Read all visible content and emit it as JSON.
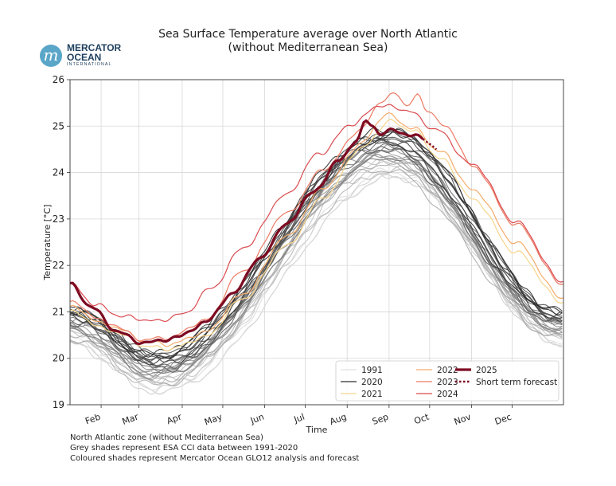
{
  "logo": {
    "line1": "MERCATOR",
    "line2": "OCEAN",
    "line3": "INTERNATIONAL",
    "mark": "m",
    "color": "#5aa6c9"
  },
  "chart_data": {
    "type": "line",
    "title": "Sea Surface Temperature average over North Atlantic",
    "subtitle": "(without Mediterranean Sea)",
    "xlabel": "Time",
    "ylabel": "Temperature [°C]",
    "ylim": [
      19,
      26
    ],
    "xlim": [
      1,
      366
    ],
    "yticks": [
      "19",
      "20",
      "21",
      "22",
      "23",
      "24",
      "25",
      "26"
    ],
    "xticks": [
      {
        "label": "Feb",
        "day": 24
      },
      {
        "label": "Mar",
        "day": 52
      },
      {
        "label": "Apr",
        "day": 84
      },
      {
        "label": "May",
        "day": 114
      },
      {
        "label": "Jun",
        "day": 145
      },
      {
        "label": "Jul",
        "day": 175
      },
      {
        "label": "Aug",
        "day": 206
      },
      {
        "label": "Sep",
        "day": 237
      },
      {
        "label": "Oct",
        "day": 267
      },
      {
        "label": "Nov",
        "day": 298
      },
      {
        "label": "Dec",
        "day": 328
      }
    ],
    "grid": true,
    "grey_series": {
      "name": "ESA CCI 1991-2020",
      "years": 30,
      "jan1_range": [
        20.3,
        21.1
      ],
      "min_range": [
        19.3,
        20.1
      ],
      "min_day": 66,
      "peak_range": [
        23.9,
        24.9
      ],
      "peak_day": 236,
      "dec31_range": [
        20.3,
        21.0
      ],
      "color_range": [
        "#e6e6e6",
        "#2c2c2c"
      ]
    },
    "series": [
      {
        "name": "2021",
        "color": "#f6d58c",
        "width": 1.2,
        "points": [
          [
            1,
            21.0
          ],
          [
            30,
            20.6
          ],
          [
            60,
            20.25
          ],
          [
            75,
            20.2
          ],
          [
            100,
            20.45
          ],
          [
            130,
            21.3
          ],
          [
            160,
            22.4
          ],
          [
            190,
            23.5
          ],
          [
            215,
            24.5
          ],
          [
            238,
            25.1
          ],
          [
            255,
            24.9
          ],
          [
            275,
            24.3
          ],
          [
            300,
            23.4
          ],
          [
            330,
            22.3
          ],
          [
            366,
            21.2
          ]
        ]
      },
      {
        "name": "2022",
        "color": "#f4ab6a",
        "width": 1.2,
        "points": [
          [
            1,
            21.1
          ],
          [
            30,
            20.7
          ],
          [
            60,
            20.35
          ],
          [
            75,
            20.3
          ],
          [
            100,
            20.55
          ],
          [
            130,
            21.4
          ],
          [
            160,
            22.6
          ],
          [
            190,
            23.7
          ],
          [
            215,
            24.6
          ],
          [
            235,
            25.25
          ],
          [
            255,
            24.95
          ],
          [
            275,
            24.45
          ],
          [
            300,
            23.6
          ],
          [
            330,
            22.5
          ],
          [
            366,
            21.3
          ]
        ]
      },
      {
        "name": "2023",
        "color": "#ec7a62",
        "width": 1.2,
        "points": [
          [
            1,
            21.2
          ],
          [
            30,
            20.75
          ],
          [
            55,
            20.4
          ],
          [
            75,
            20.45
          ],
          [
            100,
            20.8
          ],
          [
            130,
            21.9
          ],
          [
            160,
            23.1
          ],
          [
            190,
            24.1
          ],
          [
            215,
            24.9
          ],
          [
            232,
            25.55
          ],
          [
            242,
            25.7
          ],
          [
            250,
            25.45
          ],
          [
            258,
            25.65
          ],
          [
            265,
            25.35
          ],
          [
            280,
            24.95
          ],
          [
            300,
            24.1
          ],
          [
            330,
            22.9
          ],
          [
            366,
            21.6
          ]
        ]
      },
      {
        "name": "2024",
        "color": "#db4b50",
        "width": 1.2,
        "points": [
          [
            1,
            21.6
          ],
          [
            20,
            21.15
          ],
          [
            40,
            20.9
          ],
          [
            65,
            20.8
          ],
          [
            85,
            20.95
          ],
          [
            105,
            21.5
          ],
          [
            130,
            22.4
          ],
          [
            160,
            23.5
          ],
          [
            185,
            24.4
          ],
          [
            210,
            25.05
          ],
          [
            230,
            25.45
          ],
          [
            250,
            25.35
          ],
          [
            270,
            24.95
          ],
          [
            300,
            24.15
          ],
          [
            330,
            22.95
          ],
          [
            366,
            21.65
          ]
        ]
      },
      {
        "name": "2025",
        "color": "#7d0b22",
        "width": 3.2,
        "points": [
          [
            1,
            21.6
          ],
          [
            15,
            21.15
          ],
          [
            35,
            20.6
          ],
          [
            52,
            20.35
          ],
          [
            62,
            20.35
          ],
          [
            80,
            20.45
          ],
          [
            100,
            20.75
          ],
          [
            120,
            21.35
          ],
          [
            140,
            22.1
          ],
          [
            160,
            22.85
          ],
          [
            180,
            23.55
          ],
          [
            200,
            24.25
          ],
          [
            213,
            24.7
          ],
          [
            220,
            25.1
          ],
          [
            225,
            25.0
          ],
          [
            230,
            24.85
          ],
          [
            240,
            24.9
          ],
          [
            255,
            24.8
          ],
          [
            262,
            24.72
          ]
        ]
      },
      {
        "name": "Short term forecast",
        "color": "#7d0b22",
        "width": 2.4,
        "dash": true,
        "points": [
          [
            262,
            24.72
          ],
          [
            268,
            24.6
          ],
          [
            272,
            24.5
          ]
        ]
      }
    ],
    "legend": {
      "placement": "bottom-right",
      "entries": [
        {
          "label": "1991",
          "color": "#e0e0e0",
          "width": 1.2,
          "dash": false
        },
        {
          "label": "2020",
          "color": "#2f2f2f",
          "width": 1.2,
          "dash": false
        },
        {
          "label": "2021",
          "color": "#f6d58c",
          "width": 1.2,
          "dash": false
        },
        {
          "label": "2022",
          "color": "#f4ab6a",
          "width": 1.2,
          "dash": false
        },
        {
          "label": "2023",
          "color": "#ec7a62",
          "width": 1.2,
          "dash": false
        },
        {
          "label": "2024",
          "color": "#db4b50",
          "width": 1.2,
          "dash": false
        },
        {
          "label": "2025",
          "color": "#7d0b22",
          "width": 3.2,
          "dash": false
        },
        {
          "label": "Short term forecast",
          "color": "#7d0b22",
          "width": 2.4,
          "dash": true
        }
      ]
    }
  },
  "footnotes": [
    "North Atlantic zone (without Mediterranean Sea)",
    "Grey shades represent ESA CCI data between 1991-2020",
    "Coloured shades represent Mercator Ocean GLO12 analysis and forecast"
  ]
}
